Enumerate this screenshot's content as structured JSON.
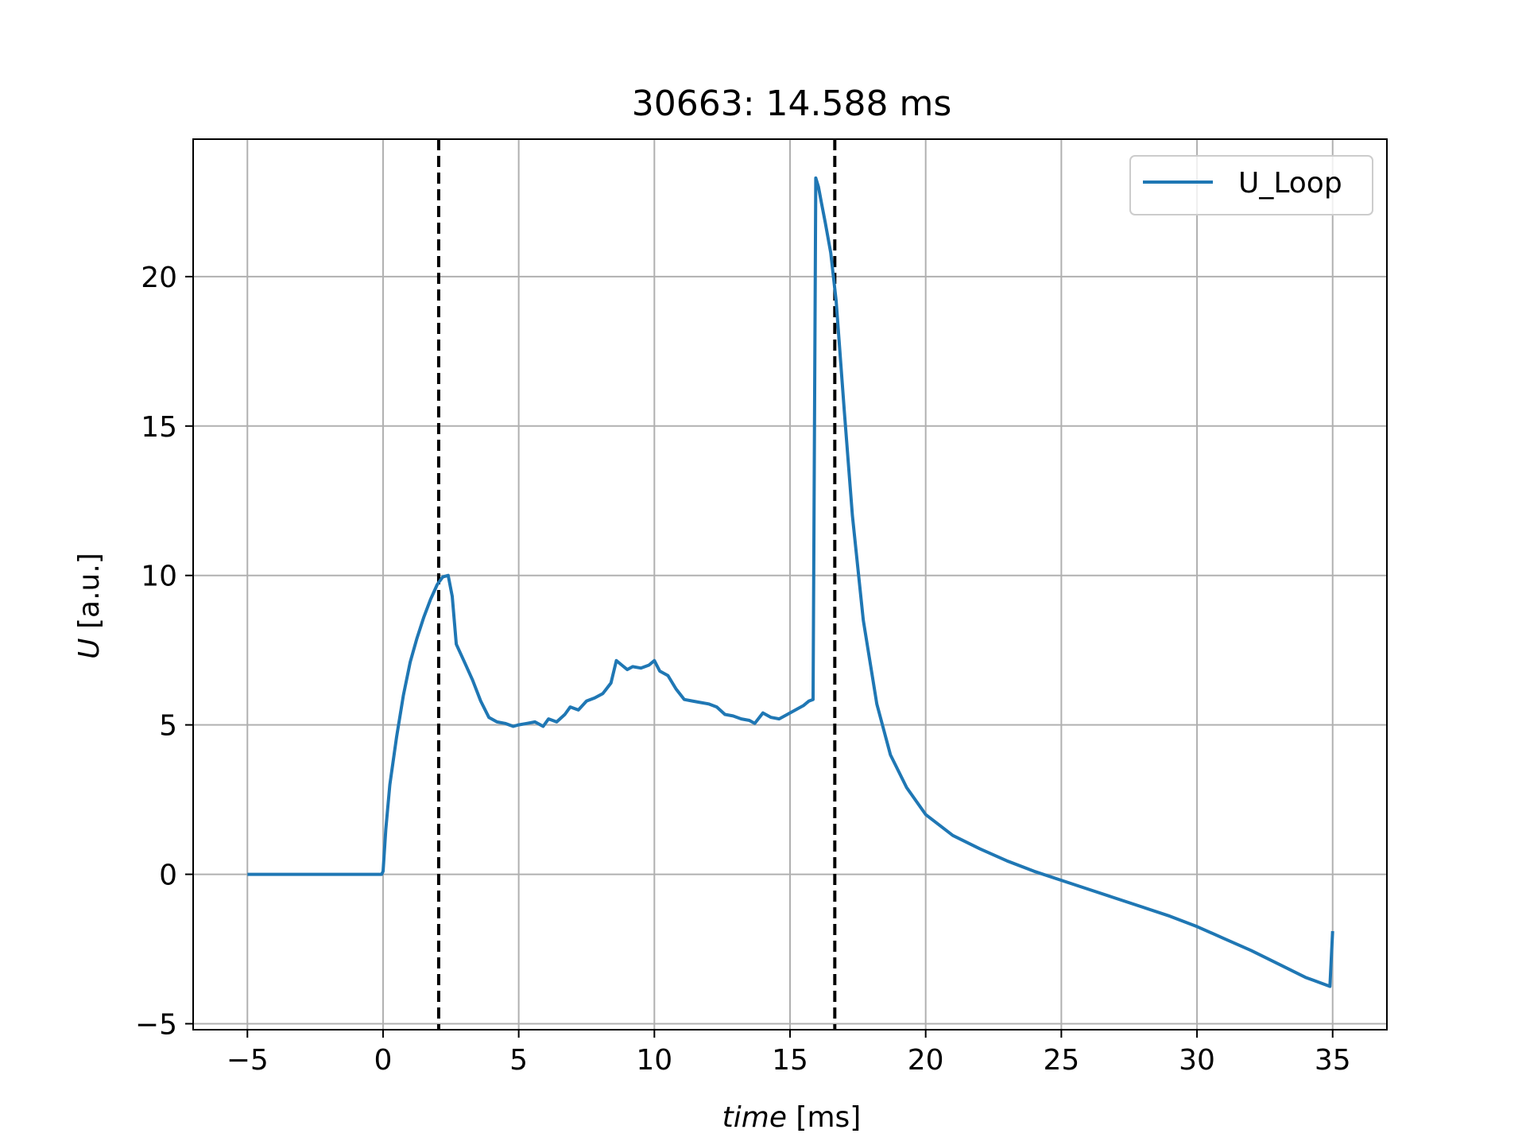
{
  "chart_data": {
    "type": "line",
    "title": "30663: 14.588 ms",
    "xlabel_italic": "time",
    "xlabel_unit": " [ms]",
    "ylabel_italic": "U",
    "ylabel_unit": " [a.u.]",
    "xlim": [
      -7,
      37
    ],
    "ylim": [
      -5.2,
      24.6
    ],
    "xticks": [
      -5,
      0,
      5,
      10,
      15,
      20,
      25,
      30,
      35
    ],
    "xtick_labels": [
      "−5",
      "0",
      "5",
      "10",
      "15",
      "20",
      "25",
      "30",
      "35"
    ],
    "yticks": [
      -5,
      0,
      5,
      10,
      15,
      20
    ],
    "ytick_labels": [
      "−5",
      "0",
      "5",
      "10",
      "15",
      "20"
    ],
    "grid": true,
    "legend_position": "top-right",
    "vlines": [
      2.05,
      16.65
    ],
    "colors": {
      "series": "#1f77b4",
      "vline": "#000000",
      "grid": "#b0b0b0"
    },
    "series": [
      {
        "name": "U_Loop",
        "x": [
          -5,
          -3,
          -1,
          -0.05,
          0.0,
          0.1,
          0.25,
          0.5,
          0.75,
          1.0,
          1.25,
          1.5,
          1.75,
          2.0,
          2.2,
          2.4,
          2.55,
          2.7,
          3.0,
          3.3,
          3.6,
          3.9,
          4.2,
          4.5,
          4.8,
          5.0,
          5.3,
          5.6,
          5.9,
          6.1,
          6.4,
          6.7,
          6.9,
          7.2,
          7.5,
          7.8,
          8.1,
          8.4,
          8.6,
          8.8,
          9.0,
          9.2,
          9.5,
          9.8,
          10.0,
          10.2,
          10.5,
          10.8,
          11.1,
          11.4,
          11.7,
          12.0,
          12.3,
          12.6,
          12.9,
          13.2,
          13.5,
          13.7,
          14.0,
          14.3,
          14.6,
          14.9,
          15.2,
          15.5,
          15.7,
          15.85,
          15.95,
          16.05,
          16.15,
          16.3,
          16.5,
          16.7,
          17.0,
          17.3,
          17.7,
          18.2,
          18.7,
          19.3,
          20.0,
          21.0,
          22.0,
          23.0,
          24.0,
          25.0,
          26.0,
          27.0,
          28.0,
          29.0,
          30.0,
          31.0,
          32.0,
          33.0,
          34.0,
          34.9,
          35.0
        ],
        "y": [
          0,
          0,
          0,
          0,
          0.1,
          1.5,
          3.0,
          4.6,
          6.0,
          7.1,
          7.9,
          8.6,
          9.2,
          9.7,
          9.95,
          10.0,
          9.3,
          7.7,
          7.1,
          6.5,
          5.8,
          5.25,
          5.1,
          5.05,
          4.95,
          5.0,
          5.05,
          5.1,
          4.95,
          5.2,
          5.1,
          5.35,
          5.6,
          5.5,
          5.8,
          5.9,
          6.05,
          6.4,
          7.15,
          7.0,
          6.85,
          6.95,
          6.9,
          7.0,
          7.15,
          6.8,
          6.65,
          6.2,
          5.85,
          5.8,
          5.75,
          5.7,
          5.6,
          5.35,
          5.3,
          5.2,
          5.15,
          5.05,
          5.4,
          5.25,
          5.2,
          5.35,
          5.5,
          5.65,
          5.8,
          5.85,
          23.3,
          23.0,
          22.5,
          21.8,
          20.8,
          19.2,
          15.5,
          12.0,
          8.5,
          5.7,
          4.0,
          2.9,
          2.0,
          1.3,
          0.85,
          0.45,
          0.1,
          -0.2,
          -0.5,
          -0.8,
          -1.1,
          -1.4,
          -1.75,
          -2.15,
          -2.55,
          -3.0,
          -3.45,
          -3.75,
          -1.9
        ]
      }
    ]
  }
}
